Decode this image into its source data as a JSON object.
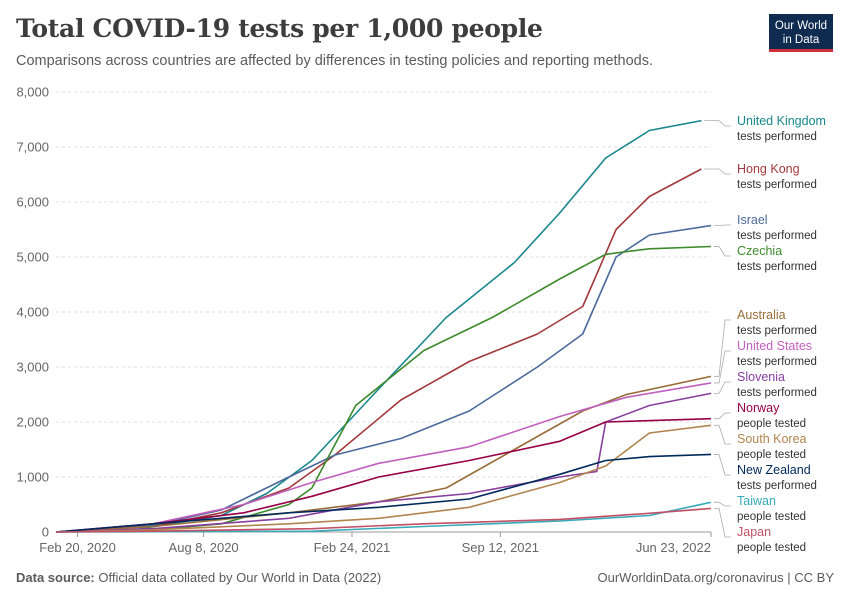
{
  "header": {
    "title": "Total COVID-19 tests per 1,000 people",
    "subtitle": "Comparisons across countries are affected by differences in testing policies and reporting methods."
  },
  "logo": {
    "line1": "Our World",
    "line2": "in Data"
  },
  "footer": {
    "source_label": "Data source:",
    "source_text": "Official data collated by Our World in Data (2022)",
    "right_text": "OurWorldinData.org/coronavirus | CC BY"
  },
  "chart_data": {
    "type": "line",
    "title": "Total COVID-19 tests per 1,000 people",
    "ylim": [
      0,
      8000
    ],
    "yticks": [
      0,
      1000,
      2000,
      3000,
      4000,
      5000,
      6000,
      7000,
      8000
    ],
    "ytick_labels": [
      "0",
      "1,000",
      "2,000",
      "3,000",
      "4,000",
      "5,000",
      "6,000",
      "7,000",
      "8,000"
    ],
    "xlim": [
      "2020-01-22",
      "2022-06-23"
    ],
    "xticks": [
      "2020-02-20",
      "2020-08-08",
      "2021-02-24",
      "2021-09-12",
      "2022-06-23"
    ],
    "xtick_labels": [
      "Feb 20, 2020",
      "Aug 8, 2020",
      "Feb 24, 2021",
      "Sep 12, 2021",
      "Jun 23, 2022"
    ],
    "grid": true,
    "legend": "right, labels at line ends",
    "series": [
      {
        "name": "United Kingdom",
        "sublabel": "tests performed",
        "color": "#18878d",
        "x": [
          "2020-01-22",
          "2020-05-01",
          "2020-09-01",
          "2020-11-01",
          "2021-01-01",
          "2021-04-01",
          "2021-07-01",
          "2021-10-01",
          "2021-12-01",
          "2022-02-01",
          "2022-04-01",
          "2022-06-10"
        ],
        "y": [
          0,
          30,
          300,
          700,
          1300,
          2600,
          3900,
          4900,
          5800,
          6800,
          7300,
          7480
        ]
      },
      {
        "name": "Hong Kong",
        "sublabel": "tests performed",
        "color": "#a2393c",
        "x": [
          "2020-01-22",
          "2020-06-01",
          "2020-09-01",
          "2020-12-01",
          "2021-02-01",
          "2021-05-01",
          "2021-08-01",
          "2021-11-01",
          "2022-01-01",
          "2022-02-15",
          "2022-04-01",
          "2022-06-10"
        ],
        "y": [
          0,
          100,
          350,
          800,
          1400,
          2400,
          3100,
          3600,
          4100,
          5500,
          6100,
          6600
        ]
      },
      {
        "name": "Israel",
        "sublabel": "tests performed",
        "color": "#4c6a9c",
        "x": [
          "2020-01-22",
          "2020-06-01",
          "2020-09-01",
          "2020-12-01",
          "2021-02-01",
          "2021-05-01",
          "2021-08-01",
          "2021-11-01",
          "2022-01-01",
          "2022-02-15",
          "2022-04-01",
          "2022-06-23"
        ],
        "y": [
          0,
          120,
          400,
          1000,
          1400,
          1700,
          2200,
          3000,
          3600,
          5000,
          5400,
          5570
        ]
      },
      {
        "name": "Czechia",
        "sublabel": "tests performed",
        "color": "#3c8a2b",
        "x": [
          "2020-01-22",
          "2020-06-01",
          "2020-09-01",
          "2020-12-01",
          "2021-01-01",
          "2021-03-01",
          "2021-06-01",
          "2021-09-01",
          "2021-12-01",
          "2022-02-01",
          "2022-04-01",
          "2022-06-23"
        ],
        "y": [
          0,
          40,
          150,
          500,
          800,
          2300,
          3300,
          3900,
          4600,
          5050,
          5150,
          5190
        ]
      },
      {
        "name": "Australia",
        "sublabel": "tests performed",
        "color": "#996d39",
        "x": [
          "2020-01-22",
          "2020-06-01",
          "2020-12-01",
          "2021-04-01",
          "2021-07-01",
          "2021-10-01",
          "2022-01-01",
          "2022-03-01",
          "2022-06-23"
        ],
        "y": [
          0,
          100,
          350,
          550,
          800,
          1500,
          2200,
          2500,
          2830
        ]
      },
      {
        "name": "United States",
        "sublabel": "tests performed",
        "color": "#c05fbd",
        "x": [
          "2020-01-22",
          "2020-06-01",
          "2020-10-01",
          "2021-01-01",
          "2021-04-01",
          "2021-08-01",
          "2021-12-01",
          "2022-03-01",
          "2022-06-23"
        ],
        "y": [
          0,
          150,
          500,
          900,
          1250,
          1550,
          2100,
          2450,
          2710
        ]
      },
      {
        "name": "Slovenia",
        "sublabel": "tests performed",
        "color": "#883f9e",
        "x": [
          "2020-01-22",
          "2020-06-01",
          "2020-12-01",
          "2021-04-01",
          "2021-08-01",
          "2021-12-01",
          "2022-01-20",
          "2022-02-01",
          "2022-04-01",
          "2022-06-23"
        ],
        "y": [
          0,
          60,
          250,
          550,
          700,
          1000,
          1100,
          2000,
          2300,
          2520
        ]
      },
      {
        "name": "Norway",
        "sublabel": "people tested",
        "color": "#970046",
        "x": [
          "2020-01-22",
          "2020-06-01",
          "2020-10-01",
          "2021-01-01",
          "2021-04-01",
          "2021-08-01",
          "2021-12-01",
          "2022-02-01",
          "2022-06-23"
        ],
        "y": [
          0,
          150,
          350,
          650,
          1000,
          1300,
          1650,
          2000,
          2060
        ]
      },
      {
        "name": "South Korea",
        "sublabel": "people tested",
        "color": "#b2854f",
        "x": [
          "2020-01-22",
          "2020-06-01",
          "2020-12-01",
          "2021-04-01",
          "2021-08-01",
          "2021-12-01",
          "2022-02-01",
          "2022-04-01",
          "2022-06-23"
        ],
        "y": [
          0,
          40,
          150,
          250,
          450,
          900,
          1200,
          1800,
          1940
        ]
      },
      {
        "name": "New Zealand",
        "sublabel": "tests performed",
        "color": "#00295b",
        "x": [
          "2020-01-22",
          "2020-06-01",
          "2020-12-01",
          "2021-04-01",
          "2021-08-01",
          "2021-12-01",
          "2022-02-01",
          "2022-04-01",
          "2022-06-23"
        ],
        "y": [
          0,
          150,
          350,
          450,
          600,
          1050,
          1300,
          1370,
          1410
        ]
      },
      {
        "name": "Taiwan",
        "sublabel": "people tested",
        "color": "#38aaba",
        "x": [
          "2020-01-22",
          "2020-06-01",
          "2021-01-01",
          "2021-06-01",
          "2021-12-01",
          "2022-04-01",
          "2022-06-23"
        ],
        "y": [
          0,
          5,
          15,
          100,
          200,
          300,
          540
        ]
      },
      {
        "name": "Japan",
        "sublabel": "people tested",
        "color": "#c15065",
        "x": [
          "2020-01-22",
          "2020-06-01",
          "2021-01-01",
          "2021-06-01",
          "2021-12-01",
          "2022-04-01",
          "2022-06-23"
        ],
        "y": [
          0,
          15,
          60,
          150,
          230,
          340,
          430
        ]
      }
    ]
  }
}
